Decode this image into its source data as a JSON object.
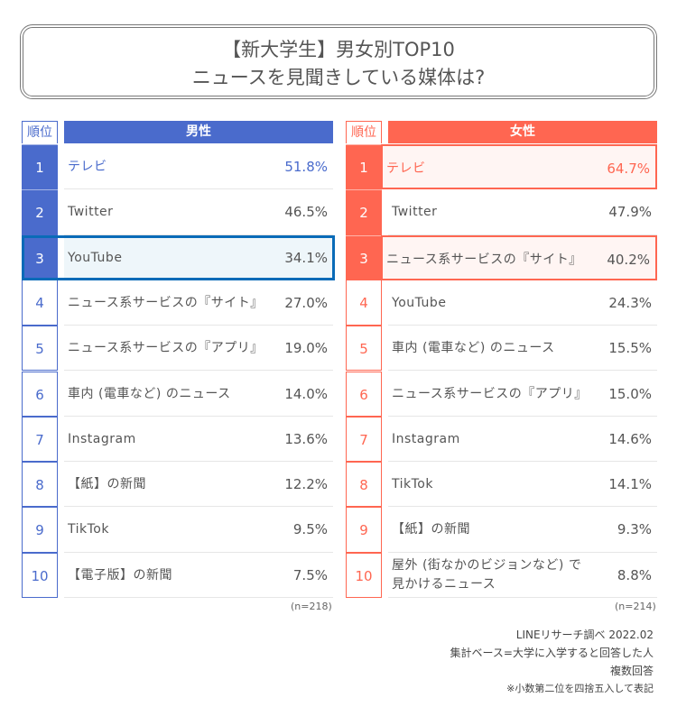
{
  "title": {
    "line1": "【新大学生】男女別TOP10",
    "line2": "ニュースを見聞きしている媒体は?"
  },
  "rank_header": "順位",
  "colors": {
    "male": "#4a6bcc",
    "female": "#ff6651",
    "male_highlight": "#0a6bb8"
  },
  "male": {
    "header": "男性",
    "n": "(n=218)",
    "highlight_rank": 3,
    "rows": [
      {
        "rank": "1",
        "name": "テレビ",
        "value": "51.8%"
      },
      {
        "rank": "2",
        "name": "Twitter",
        "value": "46.5%"
      },
      {
        "rank": "3",
        "name": "YouTube",
        "value": "34.1%"
      },
      {
        "rank": "4",
        "name": "ニュース系サービスの『サイト』",
        "value": "27.0%"
      },
      {
        "rank": "5",
        "name": "ニュース系サービスの『アプリ』",
        "value": "19.0%"
      },
      {
        "rank": "6",
        "name": "車内 (電車など) のニュース",
        "value": "14.0%"
      },
      {
        "rank": "7",
        "name": "Instagram",
        "value": "13.6%"
      },
      {
        "rank": "8",
        "name": "【紙】の新聞",
        "value": "12.2%"
      },
      {
        "rank": "9",
        "name": "TikTok",
        "value": "9.5%"
      },
      {
        "rank": "10",
        "name": "【電子版】の新聞",
        "value": "7.5%"
      }
    ]
  },
  "female": {
    "header": "女性",
    "n": "(n=214)",
    "highlight_ranks": [
      1,
      3
    ],
    "rows": [
      {
        "rank": "1",
        "name": "テレビ",
        "value": "64.7%"
      },
      {
        "rank": "2",
        "name": "Twitter",
        "value": "47.9%"
      },
      {
        "rank": "3",
        "name": "ニュース系サービスの『サイト』",
        "value": "40.2%"
      },
      {
        "rank": "4",
        "name": "YouTube",
        "value": "24.3%"
      },
      {
        "rank": "5",
        "name": "車内 (電車など) のニュース",
        "value": "15.5%"
      },
      {
        "rank": "6",
        "name": "ニュース系サービスの『アプリ』",
        "value": "15.0%"
      },
      {
        "rank": "7",
        "name": "Instagram",
        "value": "14.6%"
      },
      {
        "rank": "8",
        "name": "TikTok",
        "value": "14.1%"
      },
      {
        "rank": "9",
        "name": "【紙】の新聞",
        "value": "9.3%"
      },
      {
        "rank": "10",
        "name": "屋外 (街なかのビジョンなど) で\n見かけるニュース",
        "value": "8.8%"
      }
    ]
  },
  "footer": [
    "LINEリサーチ調べ 2022.02",
    "集計ベース=大学に入学すると回答した人",
    "複数回答",
    "※小数第二位を四捨五入して表記"
  ]
}
